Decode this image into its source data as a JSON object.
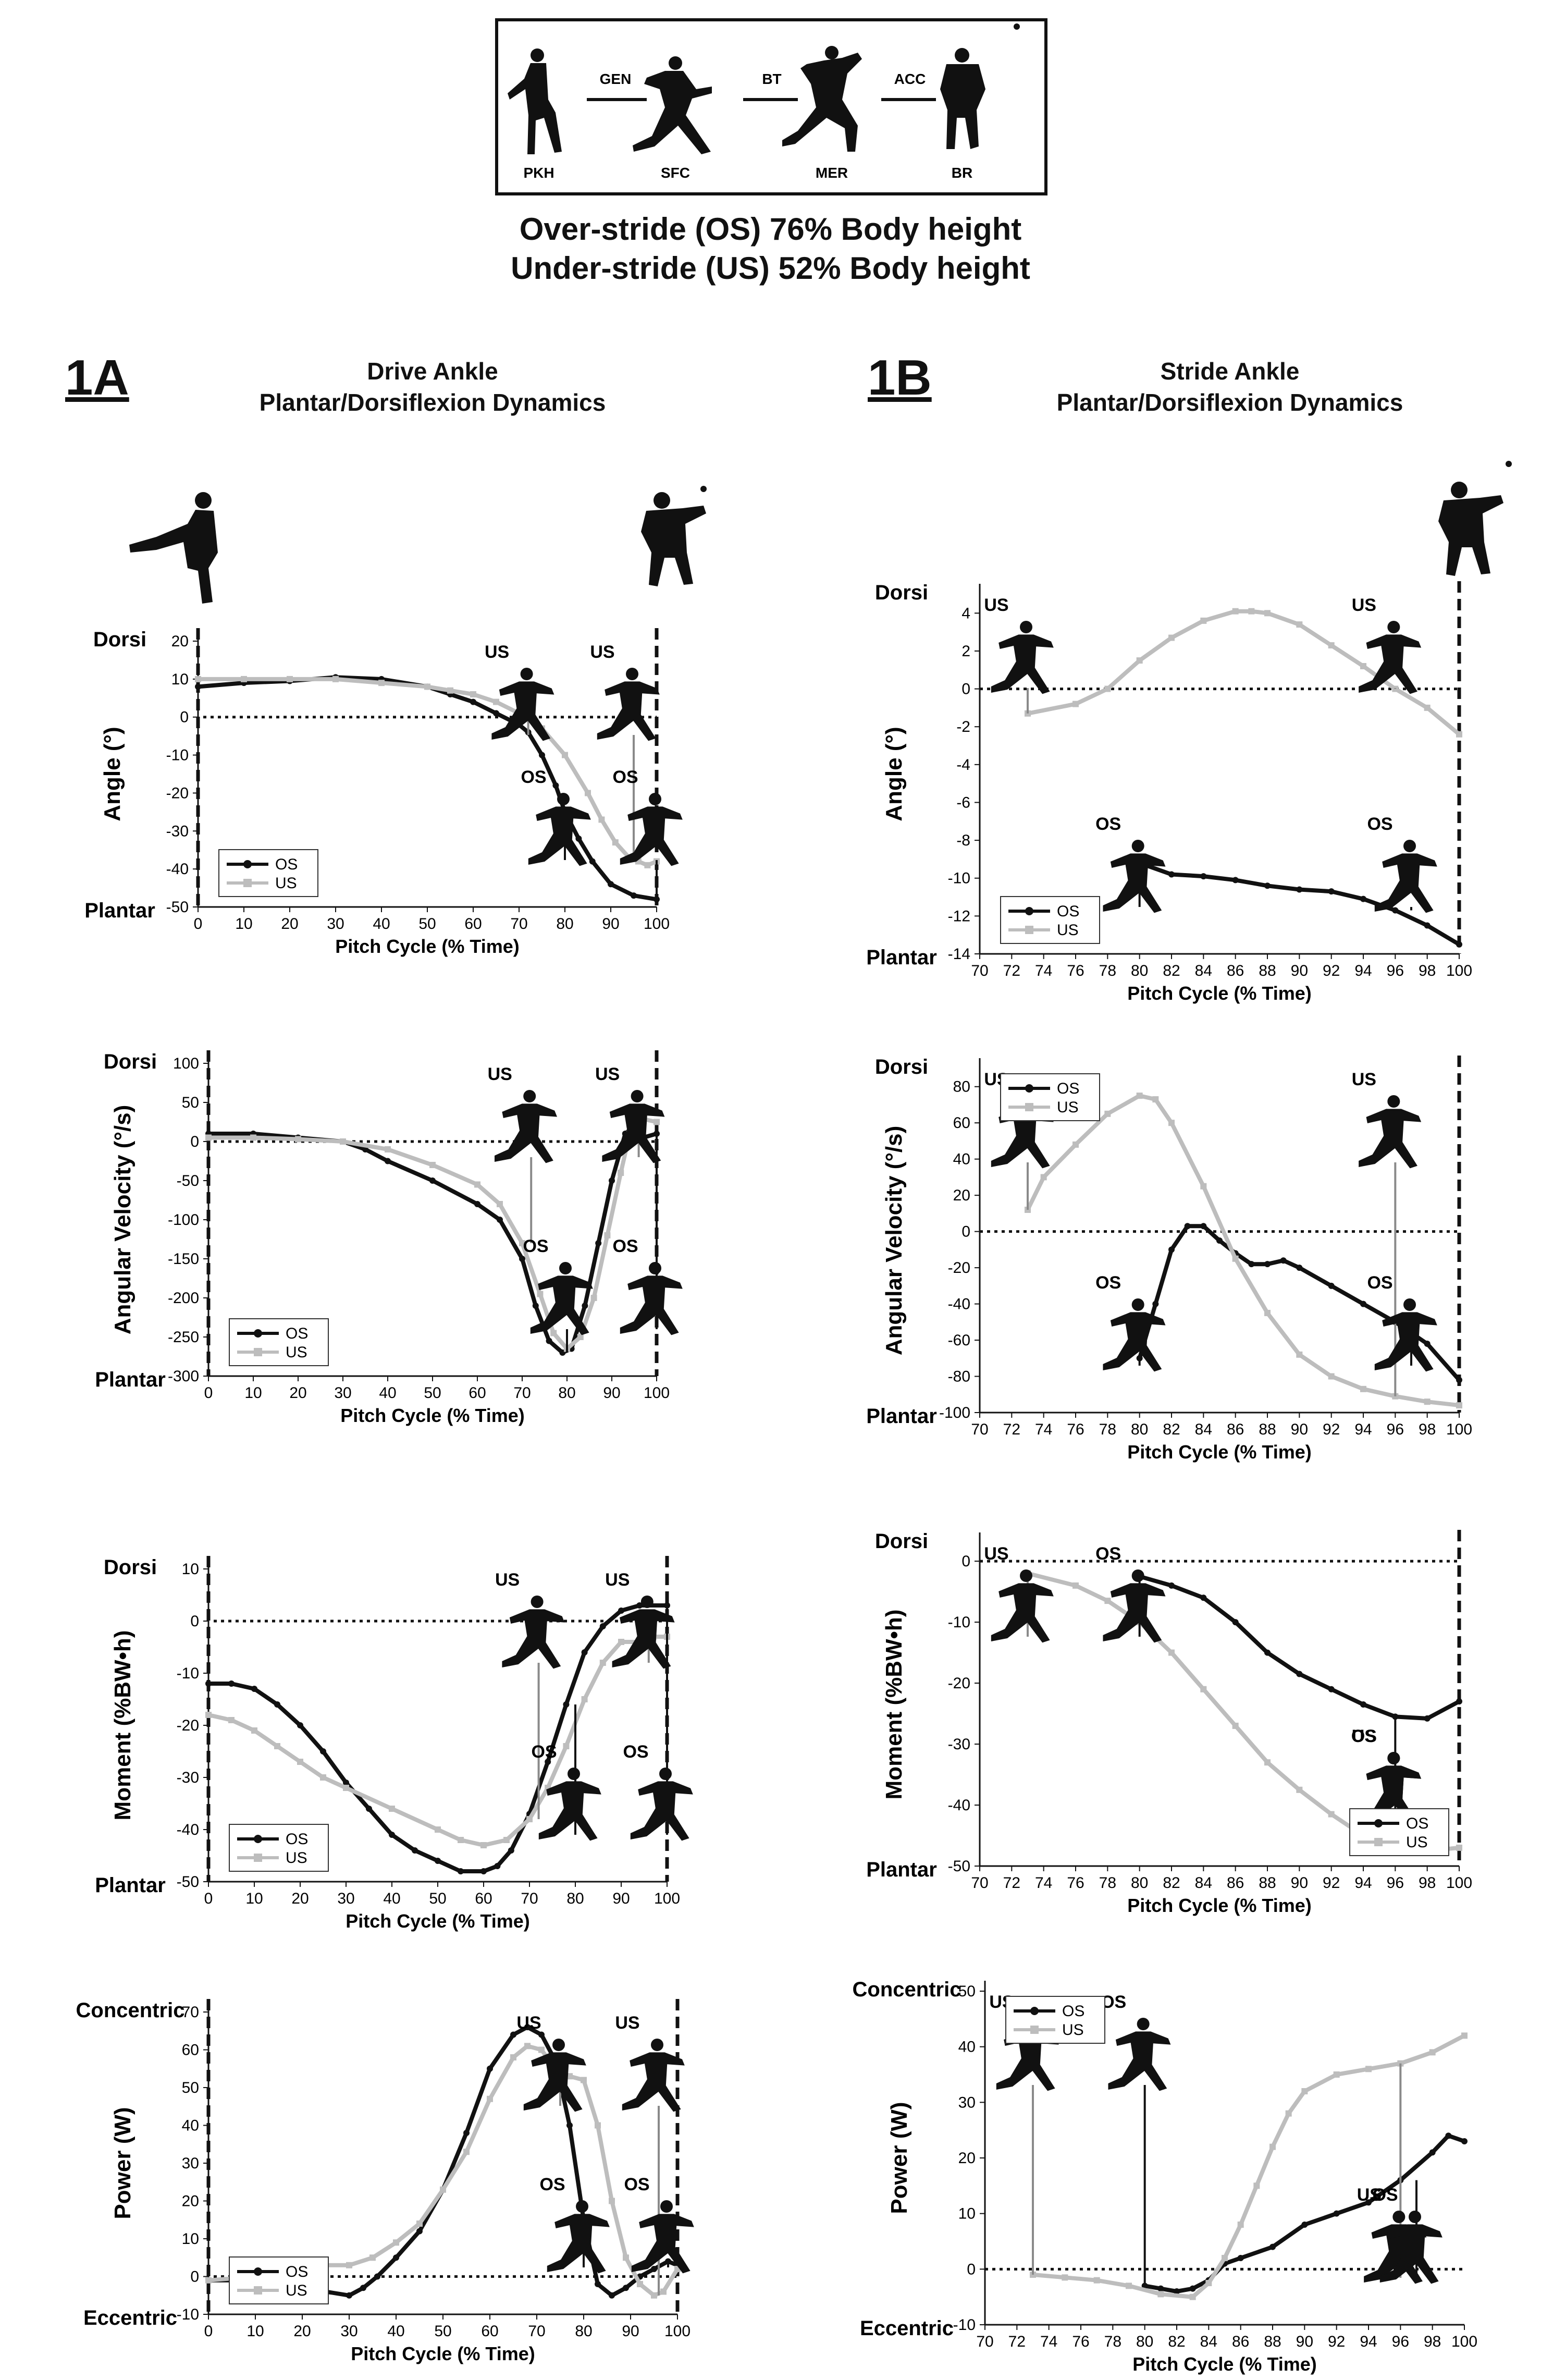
{
  "header": {
    "phases": [
      "PKH",
      "SFC",
      "MER",
      "BR"
    ],
    "transitions": [
      "GEN",
      "BT",
      "ACC"
    ],
    "line1": "Over-stride (OS) 76% Body height",
    "line2": "Under-stride (US) 52% Body height"
  },
  "panels": {
    "a": {
      "id": "1A",
      "title1": "Drive Ankle",
      "title2": "Plantar/Dorsiflexion Dynamics"
    },
    "b": {
      "id": "1B",
      "title1": "Stride Ankle",
      "title2": "Plantar/Dorsiflexion Dynamics"
    }
  },
  "colors": {
    "os": "#111111",
    "us": "#bdbdbd",
    "zero_line": "#111111"
  },
  "chart_data": [
    {
      "id": "a1",
      "type": "line",
      "xlabel": "Pitch Cycle (% Time)",
      "ylabel": "Angle (°)",
      "top_label": "Dorsi",
      "bottom_label": "Plantar",
      "xlim": [
        0,
        100
      ],
      "ylim": [
        -50,
        20
      ],
      "xticks": [
        0,
        10,
        20,
        30,
        40,
        50,
        60,
        70,
        80,
        90,
        100
      ],
      "yticks": [
        -50,
        -40,
        -30,
        -20,
        -10,
        0,
        10,
        20
      ],
      "legend": [
        "OS",
        "US"
      ],
      "legend_position": "bottom-left",
      "marks": [
        {
          "label": "US",
          "x": 72
        },
        {
          "label": "US",
          "x": 95
        },
        {
          "label": "OS",
          "x": 80
        },
        {
          "label": "OS",
          "x": 100
        }
      ],
      "series": [
        {
          "name": "OS",
          "x": [
            0,
            10,
            20,
            30,
            40,
            50,
            55,
            60,
            65,
            70,
            72,
            75,
            78,
            80,
            83,
            86,
            90,
            95,
            100
          ],
          "y": [
            8,
            9,
            9.5,
            10.5,
            10,
            8,
            6,
            4,
            1,
            -2,
            -4,
            -10,
            -18,
            -25,
            -32,
            -38,
            -44,
            -47,
            -48
          ]
        },
        {
          "name": "US",
          "x": [
            0,
            10,
            20,
            30,
            40,
            50,
            55,
            60,
            65,
            70,
            75,
            80,
            85,
            88,
            91,
            94,
            96,
            98,
            100
          ],
          "y": [
            10,
            10,
            10,
            10,
            9,
            8,
            7,
            6,
            4,
            1,
            -3,
            -10,
            -20,
            -27,
            -33,
            -37,
            -38,
            -39,
            -38
          ]
        }
      ]
    },
    {
      "id": "a2",
      "type": "line",
      "xlabel": "Pitch Cycle (% Time)",
      "ylabel": "Angular Velocity (°/s)",
      "top_label": "Dorsi",
      "bottom_label": "Plantar",
      "xlim": [
        0,
        100
      ],
      "ylim": [
        -300,
        100
      ],
      "xticks": [
        0,
        10,
        20,
        30,
        40,
        50,
        60,
        70,
        80,
        90,
        100
      ],
      "yticks": [
        -300,
        -250,
        -200,
        -150,
        -100,
        -50,
        0,
        50,
        100
      ],
      "legend": [
        "OS",
        "US"
      ],
      "legend_position": "bottom-left",
      "marks": [
        {
          "label": "US",
          "x": 72
        },
        {
          "label": "US",
          "x": 96
        },
        {
          "label": "OS",
          "x": 80
        },
        {
          "label": "OS",
          "x": 100
        }
      ],
      "series": [
        {
          "name": "OS",
          "x": [
            0,
            10,
            20,
            30,
            35,
            40,
            50,
            60,
            65,
            70,
            73,
            76,
            79,
            81,
            84,
            87,
            90,
            93,
            95,
            97,
            100
          ],
          "y": [
            10,
            10,
            5,
            0,
            -10,
            -25,
            -50,
            -80,
            -100,
            -150,
            -210,
            -255,
            -270,
            -265,
            -210,
            -130,
            -50,
            10,
            20,
            5,
            10
          ]
        },
        {
          "name": "US",
          "x": [
            0,
            10,
            20,
            30,
            40,
            50,
            60,
            65,
            70,
            74,
            77,
            80,
            83,
            86,
            89,
            92,
            94,
            96,
            100
          ],
          "y": [
            5,
            5,
            3,
            0,
            -10,
            -30,
            -55,
            -80,
            -130,
            -195,
            -245,
            -265,
            -250,
            -200,
            -120,
            -40,
            10,
            30,
            25
          ]
        }
      ]
    },
    {
      "id": "a3",
      "type": "line",
      "xlabel": "Pitch Cycle (% Time)",
      "ylabel": "Moment (%BW•h)",
      "top_label": "Dorsi",
      "bottom_label": "Plantar",
      "xlim": [
        0,
        100
      ],
      "ylim": [
        -50,
        10
      ],
      "xticks": [
        0,
        10,
        20,
        30,
        40,
        50,
        60,
        70,
        80,
        90,
        100
      ],
      "yticks": [
        -50,
        -40,
        -30,
        -20,
        -10,
        0,
        10
      ],
      "legend": [
        "OS",
        "US"
      ],
      "legend_position": "bottom-left",
      "marks": [
        {
          "label": "US",
          "x": 72
        },
        {
          "label": "US",
          "x": 96
        },
        {
          "label": "OS",
          "x": 80
        },
        {
          "label": "OS",
          "x": 100
        }
      ],
      "series": [
        {
          "name": "OS",
          "x": [
            0,
            5,
            10,
            15,
            20,
            25,
            30,
            35,
            40,
            45,
            50,
            55,
            60,
            63,
            66,
            70,
            74,
            78,
            82,
            86,
            90,
            94,
            100
          ],
          "y": [
            -12,
            -12,
            -13,
            -16,
            -20,
            -25,
            -31,
            -36,
            -41,
            -44,
            -46,
            -48,
            -48,
            -47,
            -44,
            -37,
            -27,
            -16,
            -6,
            -1,
            2,
            3,
            3
          ]
        },
        {
          "name": "US",
          "x": [
            0,
            5,
            10,
            15,
            20,
            25,
            30,
            40,
            50,
            55,
            60,
            65,
            70,
            74,
            78,
            82,
            86,
            90,
            94,
            97,
            100
          ],
          "y": [
            -18,
            -19,
            -21,
            -24,
            -27,
            -30,
            -32,
            -36,
            -40,
            -42,
            -43,
            -42,
            -38,
            -32,
            -24,
            -15,
            -8,
            -4,
            -4,
            -3,
            -3
          ]
        }
      ]
    },
    {
      "id": "a4",
      "type": "line",
      "xlabel": "Pitch Cycle (% Time)",
      "ylabel": "Power (W)",
      "top_label": "Concentric",
      "bottom_label": "Eccentric",
      "xlim": [
        0,
        100
      ],
      "ylim": [
        -10,
        70
      ],
      "xticks": [
        0,
        10,
        20,
        30,
        40,
        50,
        60,
        70,
        80,
        90,
        100
      ],
      "yticks": [
        -10,
        0,
        10,
        20,
        30,
        40,
        50,
        60,
        70
      ],
      "legend": [
        "OS",
        "US"
      ],
      "legend_position": "bottom-left",
      "marks": [
        {
          "label": "US",
          "x": 75
        },
        {
          "label": "US",
          "x": 96
        },
        {
          "label": "OS",
          "x": 80
        },
        {
          "label": "OS",
          "x": 98
        }
      ],
      "series": [
        {
          "name": "OS",
          "x": [
            0,
            10,
            20,
            25,
            30,
            33,
            36,
            40,
            45,
            50,
            55,
            60,
            65,
            68,
            71,
            74,
            77,
            80,
            83,
            86,
            89,
            92,
            95,
            98,
            100
          ],
          "y": [
            -1,
            -1,
            -3,
            -4,
            -5,
            -3,
            0,
            5,
            12,
            23,
            38,
            55,
            64,
            66,
            64,
            57,
            40,
            15,
            -2,
            -5,
            -3,
            0,
            2,
            4,
            3
          ]
        },
        {
          "name": "US",
          "x": [
            0,
            10,
            20,
            25,
            30,
            35,
            40,
            45,
            50,
            55,
            60,
            65,
            68,
            71,
            74,
            77,
            80,
            83,
            86,
            89,
            92,
            95,
            97,
            100
          ],
          "y": [
            -1,
            0,
            2,
            3,
            3,
            5,
            9,
            14,
            23,
            33,
            47,
            58,
            61,
            60,
            55,
            53,
            52,
            40,
            20,
            5,
            -2,
            -5,
            -4,
            2
          ]
        }
      ]
    },
    {
      "id": "b1",
      "type": "line",
      "xlabel": "Pitch Cycle (% Time)",
      "ylabel": "Angle (°)",
      "top_label": "Dorsi",
      "bottom_label": "Plantar",
      "xlim": [
        70,
        100
      ],
      "ylim": [
        -14,
        5
      ],
      "xticks": [
        70,
        72,
        74,
        76,
        78,
        80,
        82,
        84,
        86,
        88,
        90,
        92,
        94,
        96,
        98,
        100
      ],
      "yticks": [
        -14,
        -12,
        -10,
        -8,
        -6,
        -4,
        -2,
        0,
        2,
        4
      ],
      "legend": [
        "OS",
        "US"
      ],
      "legend_position": "bottom-left",
      "marks": [
        {
          "label": "US",
          "x": 73
        },
        {
          "label": "US",
          "x": 96
        },
        {
          "label": "OS",
          "x": 80
        },
        {
          "label": "OS",
          "x": 97
        }
      ],
      "series": [
        {
          "name": "OS",
          "x": [
            80,
            82,
            84,
            86,
            88,
            90,
            92,
            94,
            96,
            98,
            100
          ],
          "y": [
            -9.2,
            -9.8,
            -9.9,
            -10.1,
            -10.4,
            -10.6,
            -10.7,
            -11.1,
            -11.7,
            -12.5,
            -13.5
          ]
        },
        {
          "name": "US",
          "x": [
            73,
            76,
            78,
            80,
            82,
            84,
            86,
            87,
            88,
            90,
            92,
            94,
            96,
            98,
            100
          ],
          "y": [
            -1.3,
            -0.8,
            0,
            1.5,
            2.7,
            3.6,
            4.1,
            4.1,
            4,
            3.4,
            2.3,
            1.2,
            0,
            -1,
            -2.4
          ]
        }
      ]
    },
    {
      "id": "b2",
      "type": "line",
      "xlabel": "Pitch Cycle (% Time)",
      "ylabel": "Angular Velocity (°/s)",
      "top_label": "Dorsi",
      "bottom_label": "Plantar",
      "xlim": [
        70,
        100
      ],
      "ylim": [
        -100,
        90
      ],
      "xticks": [
        70,
        72,
        74,
        76,
        78,
        80,
        82,
        84,
        86,
        88,
        90,
        92,
        94,
        96,
        98,
        100
      ],
      "yticks": [
        -100,
        -80,
        -60,
        -40,
        -20,
        0,
        20,
        40,
        60,
        80
      ],
      "legend": [
        "OS",
        "US"
      ],
      "legend_position": "top-left",
      "marks": [
        {
          "label": "US",
          "x": 73
        },
        {
          "label": "US",
          "x": 96
        },
        {
          "label": "OS",
          "x": 80
        },
        {
          "label": "OS",
          "x": 97
        }
      ],
      "series": [
        {
          "name": "OS",
          "x": [
            80,
            81,
            82,
            83,
            84,
            85,
            86,
            87,
            88,
            89,
            90,
            92,
            94,
            96,
            98,
            100
          ],
          "y": [
            -70,
            -40,
            -10,
            3,
            3,
            -5,
            -12,
            -18,
            -18,
            -16,
            -20,
            -30,
            -40,
            -50,
            -62,
            -82
          ]
        },
        {
          "name": "US",
          "x": [
            73,
            74,
            76,
            78,
            80,
            81,
            82,
            84,
            86,
            88,
            90,
            92,
            94,
            96,
            98,
            100
          ],
          "y": [
            12,
            30,
            48,
            65,
            75,
            73,
            60,
            25,
            -15,
            -45,
            -68,
            -80,
            -87,
            -91,
            -94,
            -96
          ]
        }
      ]
    },
    {
      "id": "b3",
      "type": "line",
      "xlabel": "Pitch Cycle (% Time)",
      "ylabel": "Moment (%BW•h)",
      "top_label": "Dorsi",
      "bottom_label": "Plantar",
      "xlim": [
        70,
        100
      ],
      "ylim": [
        -50,
        3
      ],
      "xticks": [
        70,
        72,
        74,
        76,
        78,
        80,
        82,
        84,
        86,
        88,
        90,
        92,
        94,
        96,
        98,
        100
      ],
      "yticks": [
        -50,
        -40,
        -30,
        -20,
        -10,
        0
      ],
      "legend": [
        "OS",
        "US"
      ],
      "legend_position": "bottom-right",
      "marks": [
        {
          "label": "OS",
          "x": 80
        },
        {
          "label": "US",
          "x": 73
        },
        {
          "label": "OS",
          "x": 96
        },
        {
          "label": "US",
          "x": 96
        }
      ],
      "series": [
        {
          "name": "OS",
          "x": [
            80,
            82,
            84,
            86,
            88,
            90,
            92,
            94,
            96,
            98,
            100
          ],
          "y": [
            -2.5,
            -4,
            -6,
            -10,
            -15,
            -18.5,
            -21,
            -23.5,
            -25.5,
            -25.8,
            -23
          ]
        },
        {
          "name": "US",
          "x": [
            73,
            76,
            78,
            80,
            82,
            84,
            86,
            88,
            90,
            92,
            94,
            96,
            98,
            100
          ],
          "y": [
            -2,
            -4,
            -6.5,
            -10,
            -15,
            -21,
            -27,
            -33,
            -37.5,
            -41.5,
            -45,
            -47,
            -47.5,
            -47
          ]
        }
      ]
    },
    {
      "id": "b4",
      "type": "line",
      "xlabel": "Pitch Cycle (% Time)",
      "ylabel": "Power (W)",
      "top_label": "Concentric",
      "bottom_label": "Eccentric",
      "xlim": [
        70,
        100
      ],
      "ylim": [
        -10,
        50
      ],
      "xticks": [
        70,
        72,
        74,
        76,
        78,
        80,
        82,
        84,
        86,
        88,
        90,
        92,
        94,
        96,
        98,
        100
      ],
      "yticks": [
        -10,
        0,
        10,
        20,
        30,
        40,
        50
      ],
      "legend": [
        "OS",
        "US"
      ],
      "legend_position": "top-left",
      "marks": [
        {
          "label": "US",
          "x": 73
        },
        {
          "label": "OS",
          "x": 80
        },
        {
          "label": "US",
          "x": 96
        },
        {
          "label": "OS",
          "x": 97
        }
      ],
      "series": [
        {
          "name": "OS",
          "x": [
            80,
            81,
            82,
            83,
            84,
            85,
            86,
            88,
            90,
            92,
            94,
            96,
            98,
            99,
            100
          ],
          "y": [
            -3,
            -3.5,
            -4,
            -3.5,
            -2,
            1,
            2,
            4,
            8,
            10,
            12,
            16,
            21,
            24,
            23
          ]
        },
        {
          "name": "US",
          "x": [
            73,
            75,
            77,
            79,
            81,
            83,
            84,
            85,
            86,
            87,
            88,
            89,
            90,
            92,
            94,
            96,
            98,
            100
          ],
          "y": [
            -1,
            -1.5,
            -2,
            -3,
            -4.5,
            -5,
            -2.5,
            2,
            8,
            15,
            22,
            28,
            32,
            35,
            36,
            37,
            39,
            42
          ]
        }
      ]
    }
  ]
}
